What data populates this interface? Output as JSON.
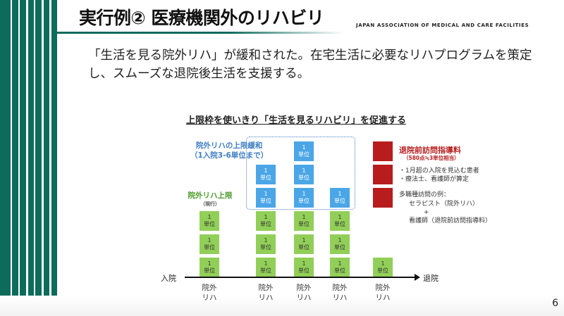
{
  "header": {
    "title": "実行例② 医療機関外のリハビリ",
    "association": "JAPAN ASSOCIATION OF MEDICAL AND CARE FACILITIES"
  },
  "lead": "「生活を見る院外リハ」が緩和された。在宅生活に必要なリハプログラムを策定し、スムーズな退院後生活を支援する。",
  "diagram": {
    "subheading": "上限枠を使いきり「生活を見るリハビリ」を促進する",
    "blue_label_1": "院外リハの上限緩和",
    "blue_label_2": "（1入院3-6単位まで）",
    "green_label": "院外リハ上限",
    "green_sub": "（現行）",
    "unit_num": "1",
    "unit_word": "単位",
    "red_label": "退院前訪問指導料",
    "red_sub": "（580点≒3単位相当）",
    "notes": [
      "・1月超の入院を見込む患者",
      "・療法士、看護師が算定"
    ],
    "example_title": "多職種訪問の例：",
    "example_1": "セラピスト（院外リハ）",
    "example_plus": "+",
    "example_2": "看護師（退院前訪問指導料）",
    "axis_start": "入院",
    "axis_end": "退院",
    "col_label_1": "院外",
    "col_label_2": "リハ",
    "columns": [
      {
        "green": 3,
        "blue": 0,
        "red": 0
      },
      {
        "green": 3,
        "blue": 2,
        "red": 0
      },
      {
        "green": 3,
        "blue": 3,
        "red": 0
      },
      {
        "green": 3,
        "blue": 1,
        "red": 0
      },
      {
        "green": 1,
        "blue": 0,
        "red": 3
      }
    ],
    "colors": {
      "green": "#92cf58",
      "blue": "#4aa6e6",
      "red": "#b81c1c",
      "brand": "#0d6b5c"
    }
  },
  "page_number": "6"
}
